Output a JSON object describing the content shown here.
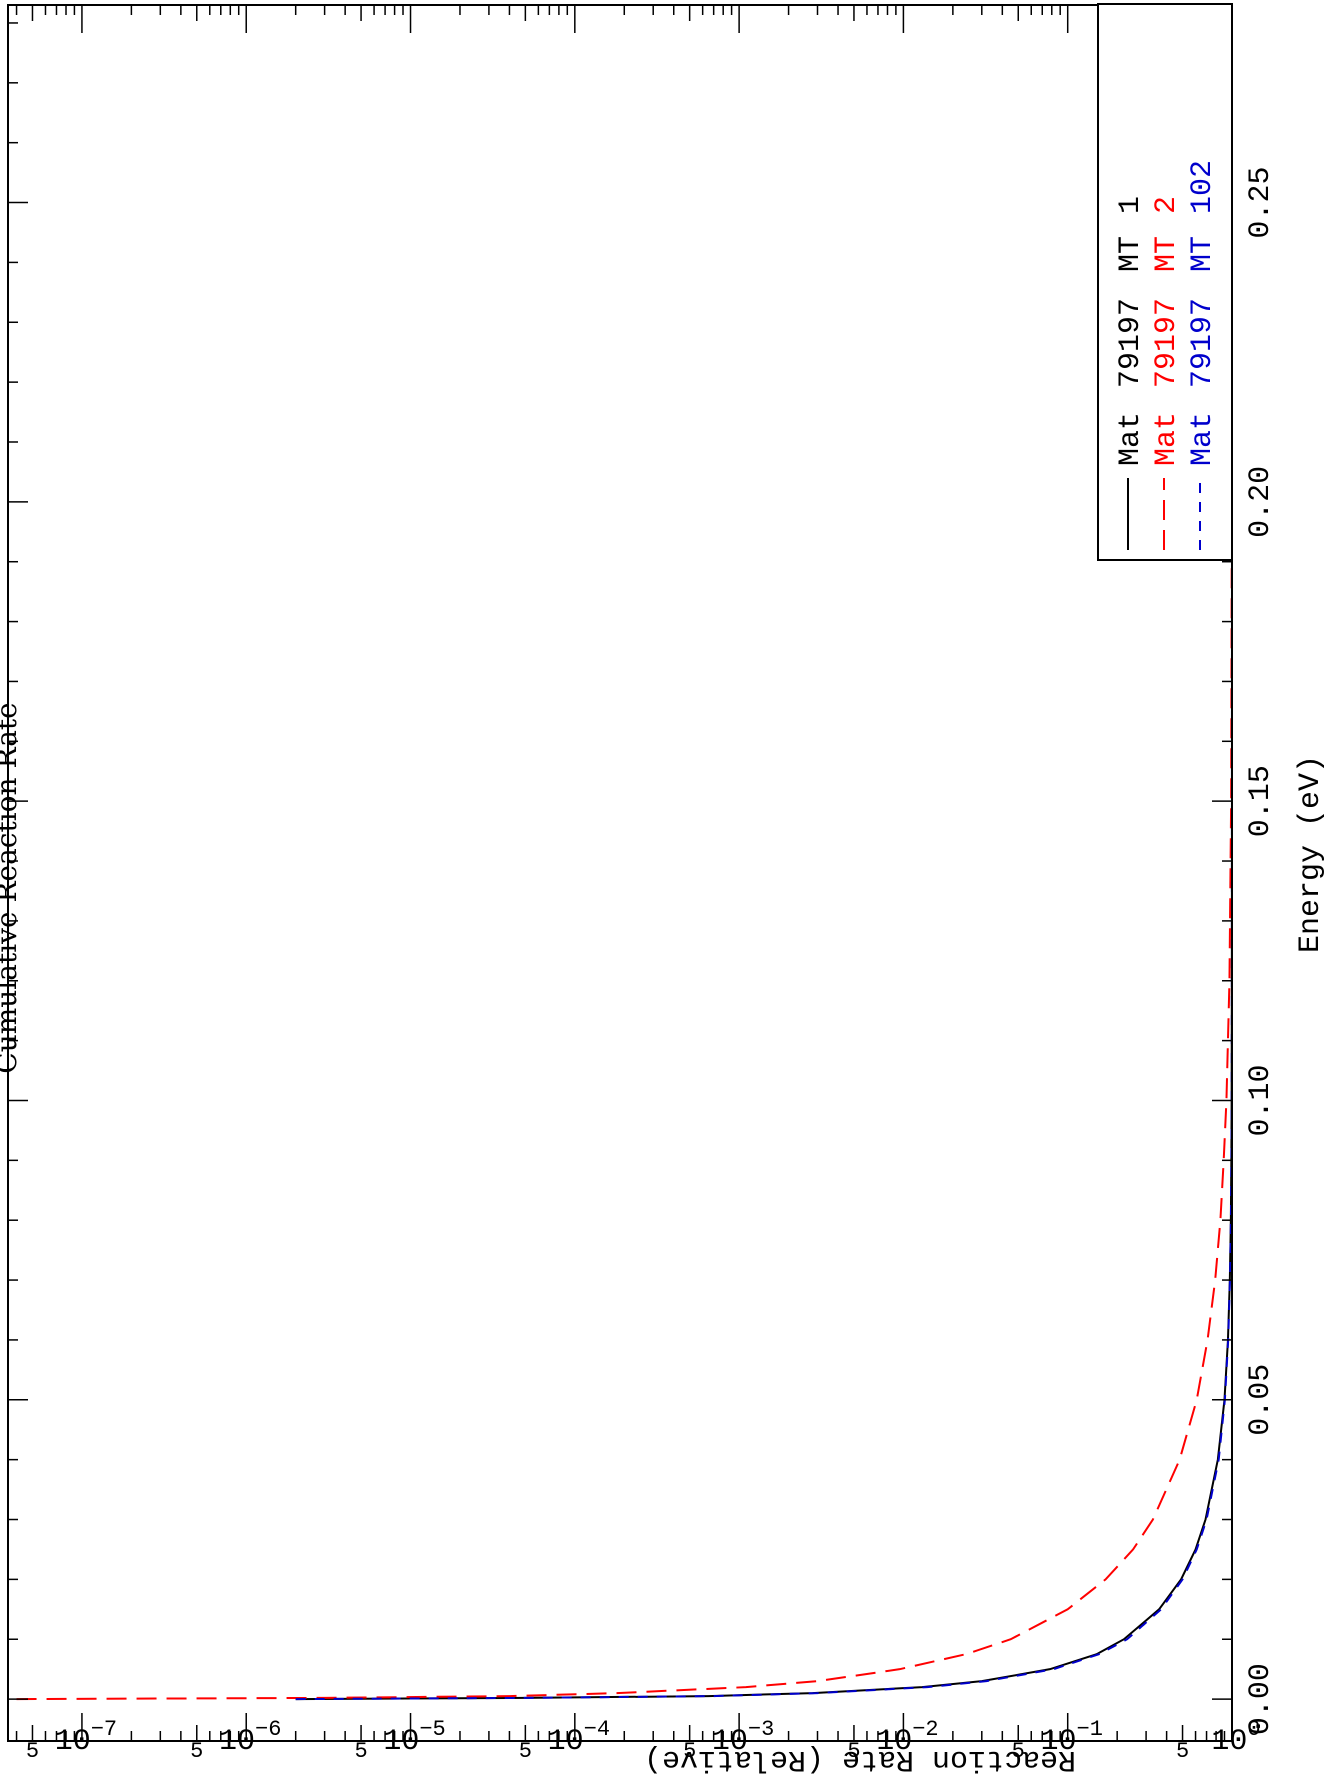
{
  "chart_data": {
    "type": "line",
    "title": "Cumulative Reaction Rate",
    "xlabel": "Energy (eV)",
    "ylabel": "Reaction Rate (Relative)",
    "xlim": [
      -0.007,
      0.283
    ],
    "ylog": true,
    "ylim_exp": [
      -7.45,
      0.0
    ],
    "x_ticks": [
      "0.00",
      "0.05",
      "0.10",
      "0.15",
      "0.20",
      "0.25"
    ],
    "y_ticks": [
      {
        "base": "10",
        "exp": "0"
      },
      {
        "base": "10",
        "exp": "−1"
      },
      {
        "base": "10",
        "exp": "−2"
      },
      {
        "base": "10",
        "exp": "−3"
      },
      {
        "base": "10",
        "exp": "−4"
      },
      {
        "base": "10",
        "exp": "−5"
      },
      {
        "base": "10",
        "exp": "−6"
      },
      {
        "base": "10",
        "exp": "−7"
      }
    ],
    "y_minor_label": "5",
    "grid": false,
    "legend_position": "top-right",
    "series": [
      {
        "legend_mat": "Mat",
        "legend_matnum": "79197",
        "legend_mt": "MT",
        "legend_mtnum": "1",
        "color": "#000000",
        "dash": "solid",
        "x": [
          0.0,
          0.0002,
          0.0005,
          0.001,
          0.002,
          0.003,
          0.005,
          0.0075,
          0.01,
          0.015,
          0.02,
          0.025,
          0.03,
          0.04,
          0.05,
          0.06,
          0.07,
          0.08,
          0.09,
          0.1,
          0.12,
          0.15,
          0.2,
          0.25,
          0.283
        ],
        "y": [
          2e-06,
          5e-05,
          0.00065,
          0.0028,
          0.013,
          0.03,
          0.078,
          0.15,
          0.22,
          0.36,
          0.49,
          0.6,
          0.69,
          0.82,
          0.9,
          0.945,
          0.97,
          0.984,
          0.991,
          0.995,
          0.998,
          0.9995,
          1.0,
          1.0,
          1.0
        ]
      },
      {
        "legend_mat": "Mat",
        "legend_matnum": "79197",
        "legend_mt": "MT",
        "legend_mtnum": "2",
        "color": "#ff0000",
        "dash": "long-dash",
        "x": [
          0.0,
          0.0002,
          0.0005,
          0.001,
          0.002,
          0.003,
          0.005,
          0.0075,
          0.01,
          0.015,
          0.02,
          0.025,
          0.03,
          0.04,
          0.05,
          0.06,
          0.07,
          0.08,
          0.09,
          0.1,
          0.12,
          0.15,
          0.2,
          0.25,
          0.283
        ],
        "y": [
          4e-08,
          3e-06,
          4e-05,
          0.00018,
          0.0011,
          0.003,
          0.0095,
          0.024,
          0.045,
          0.1,
          0.17,
          0.25,
          0.33,
          0.48,
          0.61,
          0.71,
          0.79,
          0.85,
          0.89,
          0.925,
          0.965,
          0.988,
          0.998,
          1.0,
          1.0
        ]
      },
      {
        "legend_mat": "Mat",
        "legend_matnum": "79197",
        "legend_mt": "MT",
        "legend_mtnum": "102",
        "color": "#0000cc",
        "dash": "short-dash",
        "x": [
          0.0,
          0.0002,
          0.0005,
          0.001,
          0.002,
          0.003,
          0.005,
          0.0075,
          0.01,
          0.015,
          0.02,
          0.025,
          0.03,
          0.04,
          0.05,
          0.06,
          0.07,
          0.08,
          0.09,
          0.1,
          0.12,
          0.15,
          0.2,
          0.25,
          0.283
        ],
        "y": [
          2e-06,
          5e-05,
          0.0007,
          0.003,
          0.014,
          0.032,
          0.082,
          0.155,
          0.23,
          0.37,
          0.5,
          0.61,
          0.7,
          0.83,
          0.905,
          0.948,
          0.972,
          0.985,
          0.992,
          0.996,
          0.9985,
          0.9996,
          1.0,
          1.0,
          1.0
        ]
      }
    ]
  }
}
